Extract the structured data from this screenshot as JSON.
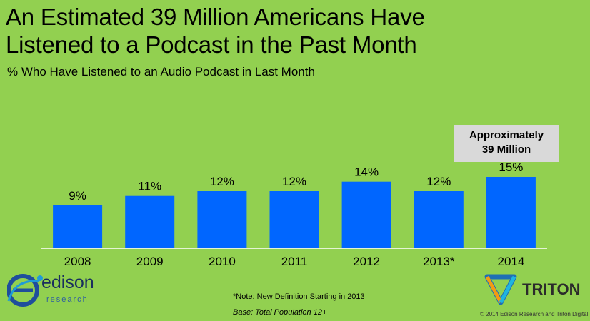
{
  "header": {
    "title": "An Estimated 39 Million Americans Have\nListened to a Podcast in the Past Month",
    "subtitle": "% Who Have Listened to an Audio Podcast in Last Month"
  },
  "callout": {
    "line1": "Approximately",
    "line2": "39 Million"
  },
  "footer": {
    "note": "*Note: New Definition Starting in 2013",
    "base": "Base: Total Population 12+",
    "copyright": "© 2014 Edison Research and Triton Digital"
  },
  "logos": {
    "edison": {
      "word": "edison",
      "sub": "research",
      "icon": "edison-e-icon"
    },
    "triton": {
      "word": "TRITON",
      "icon": "triton-tri-icon"
    }
  },
  "colors": {
    "background": "#92d050",
    "bar": "#0066ff",
    "callout": "#d9d9d9"
  },
  "chart_data": {
    "type": "bar",
    "categories": [
      "2008",
      "2009",
      "2010",
      "2011",
      "2012",
      "2013*",
      "2014"
    ],
    "values": [
      9,
      11,
      12,
      12,
      14,
      12,
      15
    ],
    "value_labels": [
      "9%",
      "11%",
      "12%",
      "12%",
      "14%",
      "12%",
      "15%"
    ],
    "title": "An Estimated 39 Million Americans Have Listened to a Podcast in the Past Month",
    "subtitle": "% Who Have Listened to an Audio Podcast in Last Month",
    "ylim": [
      0,
      30
    ],
    "grid": false
  }
}
